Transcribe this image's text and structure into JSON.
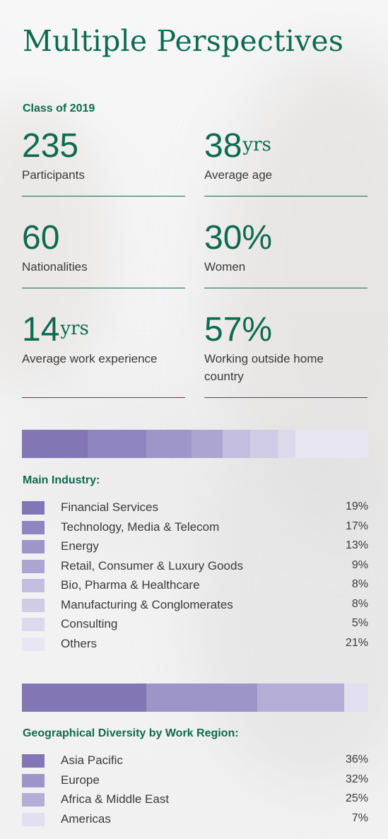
{
  "title": "Multiple Perspectives",
  "class_label": "Class of 2019",
  "stats": [
    {
      "value": "235",
      "unit": "",
      "label": "Participants"
    },
    {
      "value": "38",
      "unit": "yrs",
      "label": "Average age"
    },
    {
      "value": "60",
      "unit": "",
      "label": "Nationalities"
    },
    {
      "value": "30%",
      "unit": "",
      "label": "Women"
    },
    {
      "value": "14",
      "unit": "yrs",
      "label": "Average work experience"
    },
    {
      "value": "57%",
      "unit": "",
      "label": "Working outside home country"
    }
  ],
  "colors": {
    "title": "#0e6b50",
    "text": "#3a3a3a",
    "industry": [
      "#8276b5",
      "#8f85c0",
      "#9e95c9",
      "#aca5d1",
      "#c3bee0",
      "#d0cce6",
      "#dcd9ed",
      "#e8e6f3"
    ],
    "region": [
      "#8276b5",
      "#9d94c8",
      "#b4aed7",
      "#e2dff0"
    ]
  },
  "chart_data": [
    {
      "type": "bar",
      "title": "Main Industry:",
      "categories": [
        "Financial Services",
        "Technology, Media & Telecom",
        "Energy",
        "Retail, Consumer & Luxury Goods",
        "Bio, Pharma & Healthcare",
        "Manufacturing & Conglomerates",
        "Consulting",
        "Others"
      ],
      "values": [
        19,
        17,
        13,
        9,
        8,
        8,
        5,
        21
      ],
      "labels": [
        "19%",
        "17%",
        "13%",
        "9%",
        "8%",
        "8%",
        "5%",
        "21%"
      ]
    },
    {
      "type": "bar",
      "title": "Geographical Diversity by Work Region:",
      "categories": [
        "Asia Pacific",
        "Europe",
        "Africa & Middle East",
        "Americas"
      ],
      "values": [
        36,
        32,
        25,
        7
      ],
      "labels": [
        "36%",
        "32%",
        "25%",
        "7%"
      ]
    }
  ]
}
